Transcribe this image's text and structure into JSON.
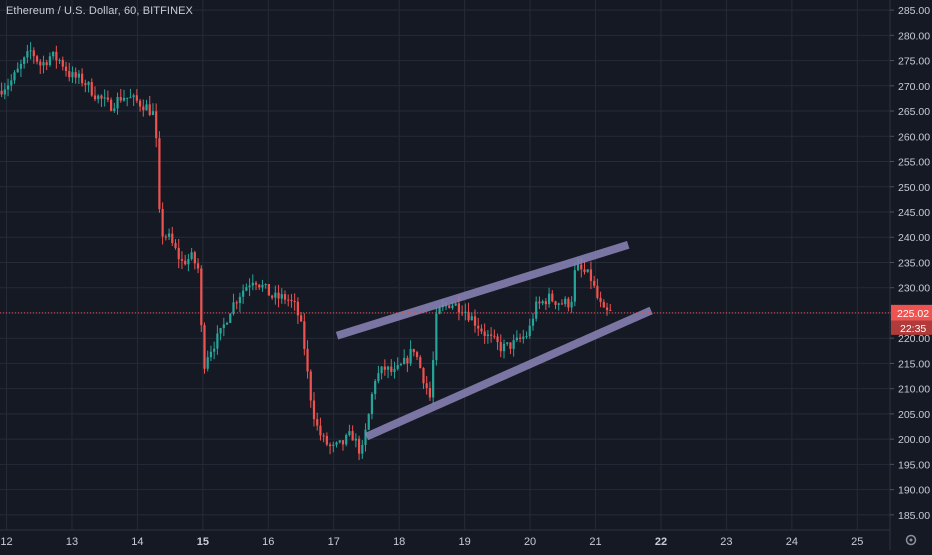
{
  "header": {
    "symbol_title": "Ethereum / U.S. Dollar, 60, BITFINEX"
  },
  "colors": {
    "background": "#151924",
    "grid": "#262b38",
    "axis_text": "#c8ccd6",
    "up_candle": "#26a69a",
    "down_candle": "#ef5350",
    "channel": "#8c86b8",
    "price_line": "#ef5350",
    "price_label_bg": "#ef5350"
  },
  "chart_data": {
    "type": "candlestick",
    "title": "Ethereum / U.S. Dollar, 60, BITFINEX",
    "xlabel": "",
    "ylabel": "",
    "xlim": [
      11.9,
      25.5
    ],
    "ylim": [
      182,
      287
    ],
    "grid": true,
    "x_ticks": [
      {
        "value": 12,
        "label": "12",
        "bold": false
      },
      {
        "value": 13,
        "label": "13",
        "bold": false
      },
      {
        "value": 14,
        "label": "14",
        "bold": false
      },
      {
        "value": 15,
        "label": "15",
        "bold": true
      },
      {
        "value": 16,
        "label": "16",
        "bold": false
      },
      {
        "value": 17,
        "label": "17",
        "bold": false
      },
      {
        "value": 18,
        "label": "18",
        "bold": false
      },
      {
        "value": 19,
        "label": "19",
        "bold": false
      },
      {
        "value": 20,
        "label": "20",
        "bold": false
      },
      {
        "value": 21,
        "label": "21",
        "bold": false
      },
      {
        "value": 22,
        "label": "22",
        "bold": true
      },
      {
        "value": 23,
        "label": "23",
        "bold": false
      },
      {
        "value": 24,
        "label": "24",
        "bold": false
      },
      {
        "value": 25,
        "label": "25",
        "bold": false
      }
    ],
    "y_ticks": [
      {
        "value": 185,
        "label": "185.00"
      },
      {
        "value": 190,
        "label": "190.00"
      },
      {
        "value": 195,
        "label": "195.00"
      },
      {
        "value": 200,
        "label": "200.00"
      },
      {
        "value": 205,
        "label": "205.00"
      },
      {
        "value": 210,
        "label": "210.00"
      },
      {
        "value": 215,
        "label": "215.00"
      },
      {
        "value": 220,
        "label": "220.00"
      },
      {
        "value": 225,
        "label": "225.00"
      },
      {
        "value": 230,
        "label": "230.00"
      },
      {
        "value": 235,
        "label": "235.00"
      },
      {
        "value": 240,
        "label": "240.00"
      },
      {
        "value": 245,
        "label": "245.00"
      },
      {
        "value": 250,
        "label": "250.00"
      },
      {
        "value": 255,
        "label": "255.00"
      },
      {
        "value": 260,
        "label": "260.00"
      },
      {
        "value": 265,
        "label": "265.00"
      },
      {
        "value": 270,
        "label": "270.00"
      },
      {
        "value": 275,
        "label": "275.00"
      },
      {
        "value": 280,
        "label": "280.00"
      },
      {
        "value": 285,
        "label": "285.00"
      }
    ],
    "price_path": [
      [
        11.9,
        269
      ],
      [
        12.1,
        271
      ],
      [
        12.3,
        275
      ],
      [
        12.4,
        277
      ],
      [
        12.55,
        274
      ],
      [
        12.7,
        276
      ],
      [
        12.85,
        275
      ],
      [
        13.0,
        272
      ],
      [
        13.2,
        271
      ],
      [
        13.4,
        268
      ],
      [
        13.6,
        266
      ],
      [
        13.8,
        268
      ],
      [
        14.0,
        267
      ],
      [
        14.15,
        266
      ],
      [
        14.3,
        264
      ],
      [
        14.33,
        250
      ],
      [
        14.38,
        241
      ],
      [
        14.5,
        240
      ],
      [
        14.7,
        235
      ],
      [
        14.85,
        236
      ],
      [
        14.95,
        234
      ],
      [
        15.0,
        222
      ],
      [
        15.05,
        215
      ],
      [
        15.1,
        217
      ],
      [
        15.3,
        221
      ],
      [
        15.45,
        226
      ],
      [
        15.6,
        229
      ],
      [
        15.8,
        232
      ],
      [
        15.95,
        230
      ],
      [
        16.1,
        228
      ],
      [
        16.3,
        228
      ],
      [
        16.45,
        226
      ],
      [
        16.55,
        221
      ],
      [
        16.65,
        210
      ],
      [
        16.75,
        203
      ],
      [
        16.85,
        200
      ],
      [
        17.0,
        198
      ],
      [
        17.15,
        199
      ],
      [
        17.3,
        201
      ],
      [
        17.45,
        197
      ],
      [
        17.55,
        204
      ],
      [
        17.65,
        212
      ],
      [
        17.8,
        214
      ],
      [
        17.95,
        213
      ],
      [
        18.1,
        215
      ],
      [
        18.25,
        218
      ],
      [
        18.4,
        212
      ],
      [
        18.5,
        208
      ],
      [
        18.6,
        225
      ],
      [
        18.8,
        227
      ],
      [
        19.0,
        226
      ],
      [
        19.2,
        223
      ],
      [
        19.4,
        220
      ],
      [
        19.6,
        218
      ],
      [
        19.8,
        219
      ],
      [
        20.0,
        221
      ],
      [
        20.1,
        226
      ],
      [
        20.3,
        228
      ],
      [
        20.5,
        227
      ],
      [
        20.65,
        227
      ],
      [
        20.72,
        234
      ],
      [
        20.85,
        233
      ],
      [
        20.95,
        232
      ],
      [
        21.05,
        228
      ],
      [
        21.15,
        225
      ],
      [
        21.25,
        225
      ]
    ],
    "channel_lines": [
      {
        "name": "upper",
        "x1": 17.05,
        "y1": 220.5,
        "x2": 21.5,
        "y2": 238.5
      },
      {
        "name": "lower",
        "x1": 17.5,
        "y1": 200.5,
        "x2": 21.85,
        "y2": 225.5
      }
    ],
    "last_price": {
      "value": 225.02,
      "label": "225.02",
      "countdown": "22:35"
    }
  }
}
